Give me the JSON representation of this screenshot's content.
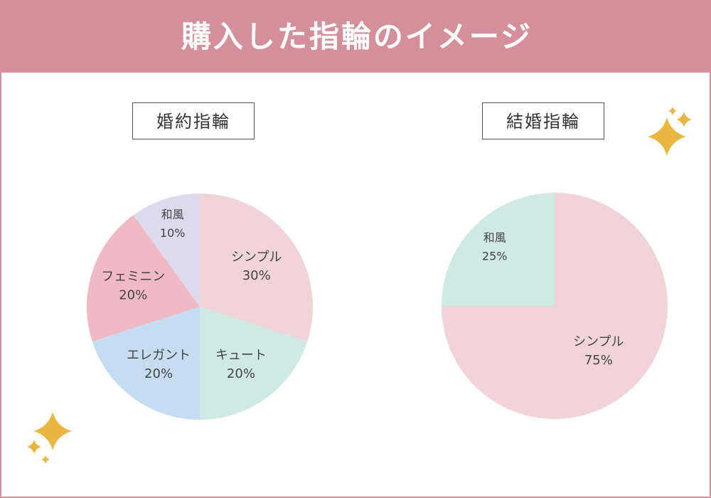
{
  "header": {
    "title": "購入した指輪のイメージ"
  },
  "colors": {
    "header_bg": "#d48f9a",
    "frame_border": "#d48f9a",
    "sparkle": "#eab642"
  },
  "chart_data": [
    {
      "type": "pie",
      "title": "婚約指輪",
      "slices": [
        {
          "label": "シンプル",
          "value": 30,
          "display": "30%",
          "color": "#f0d4d7"
        },
        {
          "label": "キュート",
          "value": 20,
          "display": "20%",
          "color": "#cfe9e5"
        },
        {
          "label": "エレガント",
          "value": 20,
          "display": "20%",
          "color": "#c6dcf1"
        },
        {
          "label": "フェミニン",
          "value": 20,
          "display": "20%",
          "color": "#efbac3"
        },
        {
          "label": "和風",
          "value": 10,
          "display": "10%",
          "color": "#dedaed"
        }
      ]
    },
    {
      "type": "pie",
      "title": "結婚指輪",
      "slices": [
        {
          "label": "シンプル",
          "value": 75,
          "display": "75%",
          "color": "#f0d4d7"
        },
        {
          "label": "和風",
          "value": 25,
          "display": "25%",
          "color": "#cfe9e5"
        }
      ]
    }
  ]
}
